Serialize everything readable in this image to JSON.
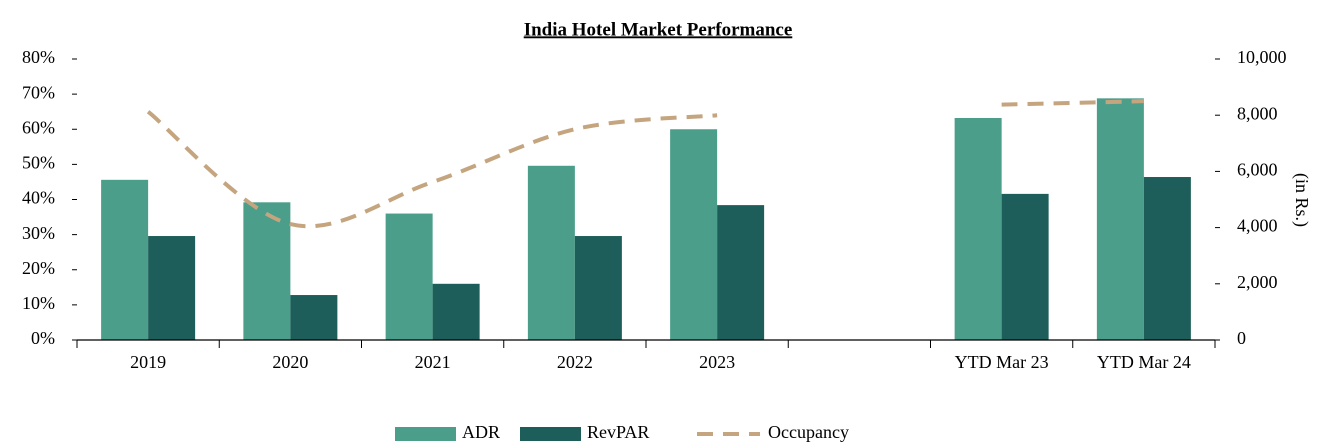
{
  "chart_data": {
    "type": "bar",
    "title": "India Hotel Market Performance",
    "categories": [
      "2019",
      "2020",
      "2021",
      "2022",
      "2023",
      null,
      "YTD Mar 23",
      "YTD Mar 24"
    ],
    "series": [
      {
        "name": "ADR",
        "type": "bar",
        "axis": "y2",
        "color": "#4b9e8a",
        "values": [
          5700,
          4900,
          4500,
          6200,
          7500,
          null,
          7900,
          8600
        ]
      },
      {
        "name": "RevPAR",
        "type": "bar",
        "axis": "y2",
        "color": "#1e5e5a",
        "values": [
          3700,
          1600,
          2000,
          3700,
          4800,
          null,
          5200,
          5800
        ]
      },
      {
        "name": "Occupancy",
        "type": "line",
        "axis": "y",
        "color": "#c4a57f",
        "dashed": true,
        "values": [
          65,
          33,
          45,
          60,
          64,
          null,
          67,
          68
        ]
      }
    ],
    "ylim": [
      0,
      80
    ],
    "yticks": [
      {
        "value": 0,
        "label": "0%"
      },
      {
        "value": 10,
        "label": "10%"
      },
      {
        "value": 20,
        "label": "20%"
      },
      {
        "value": 30,
        "label": "30%"
      },
      {
        "value": 40,
        "label": "40%"
      },
      {
        "value": 50,
        "label": "50%"
      },
      {
        "value": 60,
        "label": "60%"
      },
      {
        "value": 70,
        "label": "70%"
      },
      {
        "value": 80,
        "label": "80%"
      }
    ],
    "y2lim": [
      0,
      10000
    ],
    "y2ticks": [
      0,
      {
        "value": 2000,
        "label": "2,000"
      },
      {
        "value": 4000,
        "label": "4,000"
      },
      {
        "value": 6000,
        "label": "6,000"
      },
      {
        "value": 8000,
        "label": "8,000"
      },
      {
        "value": 10000,
        "label": "10,000"
      }
    ],
    "y2label": "(in Rs.)",
    "legend": "bottom"
  }
}
